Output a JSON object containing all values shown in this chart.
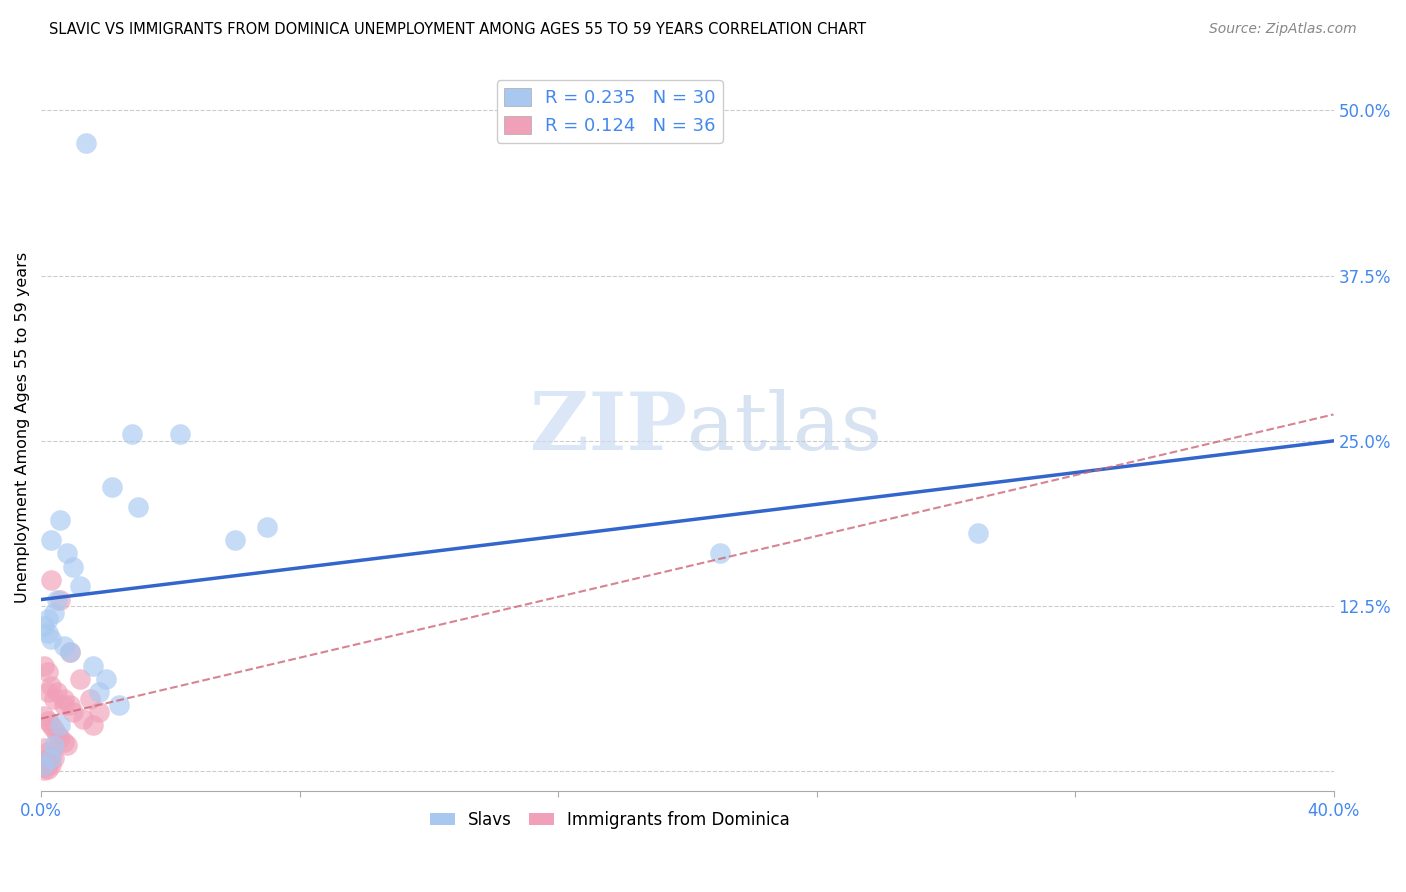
{
  "title": "SLAVIC VS IMMIGRANTS FROM DOMINICA UNEMPLOYMENT AMONG AGES 55 TO 59 YEARS CORRELATION CHART",
  "source": "Source: ZipAtlas.com",
  "ylabel": "Unemployment Among Ages 55 to 59 years",
  "xlim": [
    0.0,
    0.4
  ],
  "ylim": [
    -0.015,
    0.535
  ],
  "yticks_right": [
    0.0,
    0.125,
    0.25,
    0.375,
    0.5
  ],
  "yticklabels_right": [
    "",
    "12.5%",
    "25.0%",
    "37.5%",
    "50.0%"
  ],
  "slavs_R": 0.235,
  "slavs_N": 30,
  "dominica_R": 0.124,
  "dominica_N": 36,
  "slavs_color": "#a8c8f0",
  "dominica_color": "#f0a0b8",
  "slavs_line_color": "#3366cc",
  "dominica_line_color": "#cc6677",
  "legend_text_color": "#4488ee",
  "watermark_color": "#ccddf5",
  "slavs_x": [
    0.014,
    0.028,
    0.043,
    0.022,
    0.03,
    0.006,
    0.003,
    0.008,
    0.01,
    0.012,
    0.005,
    0.004,
    0.002,
    0.001,
    0.002,
    0.003,
    0.007,
    0.009,
    0.016,
    0.02,
    0.018,
    0.024,
    0.06,
    0.07,
    0.29,
    0.21,
    0.006,
    0.004,
    0.003,
    0.001
  ],
  "slavs_y": [
    0.475,
    0.255,
    0.255,
    0.215,
    0.2,
    0.19,
    0.175,
    0.165,
    0.155,
    0.14,
    0.13,
    0.12,
    0.115,
    0.11,
    0.105,
    0.1,
    0.095,
    0.09,
    0.08,
    0.07,
    0.06,
    0.05,
    0.175,
    0.185,
    0.18,
    0.165,
    0.035,
    0.02,
    0.01,
    0.005
  ],
  "dominica_x": [
    0.003,
    0.006,
    0.009,
    0.012,
    0.015,
    0.018,
    0.002,
    0.004,
    0.007,
    0.01,
    0.013,
    0.016,
    0.001,
    0.002,
    0.003,
    0.005,
    0.007,
    0.009,
    0.001,
    0.002,
    0.003,
    0.004,
    0.005,
    0.006,
    0.007,
    0.008,
    0.001,
    0.002,
    0.003,
    0.004,
    0.001,
    0.002,
    0.003,
    0.001,
    0.002,
    0.001
  ],
  "dominica_y": [
    0.145,
    0.13,
    0.09,
    0.07,
    0.055,
    0.045,
    0.06,
    0.055,
    0.05,
    0.045,
    0.04,
    0.035,
    0.08,
    0.075,
    0.065,
    0.06,
    0.055,
    0.05,
    0.042,
    0.038,
    0.035,
    0.032,
    0.028,
    0.025,
    0.022,
    0.02,
    0.018,
    0.015,
    0.012,
    0.01,
    0.008,
    0.006,
    0.005,
    0.003,
    0.002,
    0.001
  ],
  "slavs_line_x0": 0.0,
  "slavs_line_y0": 0.13,
  "slavs_line_x1": 0.4,
  "slavs_line_y1": 0.25,
  "dominica_line_x0": 0.0,
  "dominica_line_y0": 0.04,
  "dominica_line_x1": 0.4,
  "dominica_line_y1": 0.27
}
